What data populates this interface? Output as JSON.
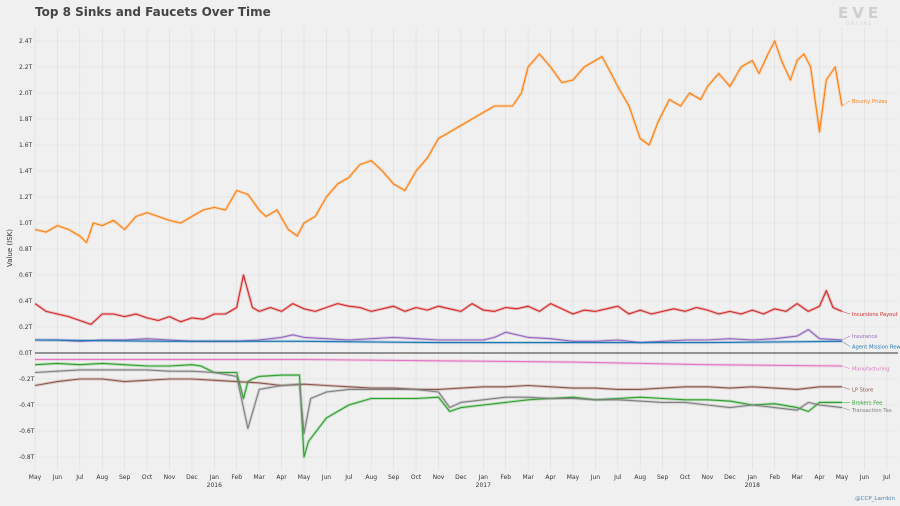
{
  "chart_data": {
    "type": "line",
    "title": "Top 8 Sinks and Faucets Over Time",
    "ylabel": "Value (ISK)",
    "ylim": [
      -0.9,
      2.5
    ],
    "y_ticks": [
      {
        "v": 2.4,
        "label": "2.4T"
      },
      {
        "v": 2.2,
        "label": "2.2T"
      },
      {
        "v": 2.0,
        "label": "2.0T"
      },
      {
        "v": 1.8,
        "label": "1.8T"
      },
      {
        "v": 1.6,
        "label": "1.6T"
      },
      {
        "v": 1.4,
        "label": "1.4T"
      },
      {
        "v": 1.2,
        "label": "1.2T"
      },
      {
        "v": 1.0,
        "label": "1.0T"
      },
      {
        "v": 0.8,
        "label": "0.8T"
      },
      {
        "v": 0.6,
        "label": "0.6T"
      },
      {
        "v": 0.4,
        "label": "0.4T"
      },
      {
        "v": 0.2,
        "label": "0.2T"
      },
      {
        "v": 0.0,
        "label": "0.0T"
      },
      {
        "v": -0.2,
        "label": "-0.2T"
      },
      {
        "v": -0.4,
        "label": "-0.4T"
      },
      {
        "v": -0.6,
        "label": "-0.6T"
      },
      {
        "v": -0.8,
        "label": "-0.8T"
      }
    ],
    "x_unit": "months since May 2015",
    "xlim": [
      0,
      38.5
    ],
    "x_ticks": [
      {
        "m": 0,
        "label": "May"
      },
      {
        "m": 1,
        "label": "Jun"
      },
      {
        "m": 2,
        "label": "Jul"
      },
      {
        "m": 3,
        "label": "Aug"
      },
      {
        "m": 4,
        "label": "Sep"
      },
      {
        "m": 5,
        "label": "Oct"
      },
      {
        "m": 6,
        "label": "Nov"
      },
      {
        "m": 7,
        "label": "Dec"
      },
      {
        "m": 8,
        "label": "Jan",
        "year": "2016"
      },
      {
        "m": 9,
        "label": "Feb"
      },
      {
        "m": 10,
        "label": "Mar"
      },
      {
        "m": 11,
        "label": "Apr"
      },
      {
        "m": 12,
        "label": "May"
      },
      {
        "m": 13,
        "label": "Jun"
      },
      {
        "m": 14,
        "label": "Jul"
      },
      {
        "m": 15,
        "label": "Aug"
      },
      {
        "m": 16,
        "label": "Sep"
      },
      {
        "m": 17,
        "label": "Oct"
      },
      {
        "m": 18,
        "label": "Nov"
      },
      {
        "m": 19,
        "label": "Dec"
      },
      {
        "m": 20,
        "label": "Jan",
        "year": "2017"
      },
      {
        "m": 21,
        "label": "Feb"
      },
      {
        "m": 22,
        "label": "Mar"
      },
      {
        "m": 23,
        "label": "Apr"
      },
      {
        "m": 24,
        "label": "May"
      },
      {
        "m": 25,
        "label": "Jun"
      },
      {
        "m": 26,
        "label": "Jul"
      },
      {
        "m": 27,
        "label": "Aug"
      },
      {
        "m": 28,
        "label": "Sep"
      },
      {
        "m": 29,
        "label": "Oct"
      },
      {
        "m": 30,
        "label": "Nov"
      },
      {
        "m": 31,
        "label": "Dec"
      },
      {
        "m": 32,
        "label": "Jan",
        "year": "2018"
      },
      {
        "m": 33,
        "label": "Feb"
      },
      {
        "m": 34,
        "label": "Mar"
      },
      {
        "m": 35,
        "label": "Apr"
      },
      {
        "m": 36,
        "label": "May"
      },
      {
        "m": 37,
        "label": "Jun"
      },
      {
        "m": 38,
        "label": "Jul"
      }
    ],
    "grid": true,
    "series": [
      {
        "name": "Bounty Prizes",
        "color": "#ff7f0e",
        "label_y": 1.94,
        "x": [
          0,
          0.5,
          1,
          1.5,
          2,
          2.3,
          2.6,
          3,
          3.5,
          4,
          4.5,
          5,
          5.5,
          6,
          6.5,
          7,
          7.5,
          8,
          8.5,
          9,
          9.5,
          10,
          10.3,
          10.8,
          11.3,
          11.7,
          12,
          12.5,
          13,
          13.5,
          14,
          14.5,
          15,
          15.5,
          16,
          16.5,
          17,
          17.5,
          18,
          18.5,
          19,
          19.5,
          20,
          20.5,
          21,
          21.3,
          21.7,
          22,
          22.5,
          23,
          23.5,
          24,
          24.5,
          25,
          25.3,
          25.7,
          26,
          26.5,
          27,
          27.4,
          27.8,
          28.3,
          28.8,
          29.2,
          29.7,
          30,
          30.5,
          31,
          31.5,
          32,
          32.3,
          32.7,
          33,
          33.3,
          33.7,
          34,
          34.3,
          34.6,
          35,
          35.3,
          35.7,
          36
        ],
        "y": [
          0.95,
          0.93,
          0.98,
          0.95,
          0.9,
          0.85,
          1.0,
          0.98,
          1.02,
          0.95,
          1.05,
          1.08,
          1.05,
          1.02,
          1.0,
          1.05,
          1.1,
          1.12,
          1.1,
          1.25,
          1.22,
          1.1,
          1.05,
          1.1,
          0.95,
          0.9,
          1.0,
          1.05,
          1.2,
          1.3,
          1.35,
          1.45,
          1.48,
          1.4,
          1.3,
          1.25,
          1.4,
          1.5,
          1.65,
          1.7,
          1.75,
          1.8,
          1.85,
          1.9,
          1.9,
          1.9,
          2.0,
          2.2,
          2.3,
          2.2,
          2.08,
          2.1,
          2.2,
          2.25,
          2.28,
          2.15,
          2.05,
          1.9,
          1.65,
          1.6,
          1.78,
          1.95,
          1.9,
          2.0,
          1.95,
          2.05,
          2.15,
          2.05,
          2.2,
          2.25,
          2.15,
          2.3,
          2.4,
          2.25,
          2.1,
          2.25,
          2.3,
          2.2,
          1.7,
          2.1,
          2.2,
          1.9
        ]
      },
      {
        "name": "Incursions Payout",
        "color": "#d62728",
        "label_y": 0.3,
        "x": [
          0,
          0.5,
          1,
          1.5,
          2,
          2.5,
          3,
          3.5,
          4,
          4.5,
          5,
          5.5,
          6,
          6.5,
          7,
          7.5,
          8,
          8.5,
          9,
          9.3,
          9.7,
          10,
          10.5,
          11,
          11.5,
          12,
          12.5,
          13,
          13.5,
          14,
          14.5,
          15,
          15.5,
          16,
          16.5,
          17,
          17.5,
          18,
          18.5,
          19,
          19.5,
          20,
          20.5,
          21,
          21.5,
          22,
          22.5,
          23,
          23.5,
          24,
          24.5,
          25,
          25.5,
          26,
          26.5,
          27,
          27.5,
          28,
          28.5,
          29,
          29.5,
          30,
          30.5,
          31,
          31.5,
          32,
          32.5,
          33,
          33.5,
          34,
          34.5,
          35,
          35.3,
          35.6,
          36
        ],
        "y": [
          0.38,
          0.32,
          0.3,
          0.28,
          0.25,
          0.22,
          0.3,
          0.3,
          0.28,
          0.3,
          0.27,
          0.25,
          0.28,
          0.24,
          0.27,
          0.26,
          0.3,
          0.3,
          0.35,
          0.6,
          0.35,
          0.32,
          0.35,
          0.32,
          0.38,
          0.34,
          0.32,
          0.35,
          0.38,
          0.36,
          0.35,
          0.32,
          0.34,
          0.36,
          0.32,
          0.35,
          0.33,
          0.36,
          0.34,
          0.32,
          0.38,
          0.33,
          0.32,
          0.35,
          0.34,
          0.36,
          0.32,
          0.38,
          0.34,
          0.3,
          0.33,
          0.32,
          0.34,
          0.36,
          0.3,
          0.33,
          0.3,
          0.32,
          0.34,
          0.32,
          0.35,
          0.33,
          0.3,
          0.32,
          0.3,
          0.33,
          0.3,
          0.34,
          0.32,
          0.38,
          0.32,
          0.36,
          0.48,
          0.35,
          0.32
        ]
      },
      {
        "name": "Insurance",
        "color": "#9467bd",
        "label_y": 0.13,
        "x": [
          0,
          1,
          2,
          3,
          4,
          5,
          6,
          7,
          8,
          9,
          10,
          11,
          11.5,
          12,
          13,
          14,
          15,
          16,
          17,
          18,
          19,
          20,
          20.5,
          21,
          22,
          23,
          24,
          25,
          26,
          27,
          28,
          29,
          30,
          31,
          32,
          33,
          34,
          34.5,
          35,
          36
        ],
        "y": [
          0.1,
          0.1,
          0.09,
          0.1,
          0.1,
          0.11,
          0.1,
          0.09,
          0.09,
          0.09,
          0.1,
          0.12,
          0.14,
          0.12,
          0.11,
          0.1,
          0.11,
          0.12,
          0.11,
          0.1,
          0.1,
          0.1,
          0.12,
          0.16,
          0.12,
          0.11,
          0.09,
          0.09,
          0.1,
          0.08,
          0.09,
          0.1,
          0.1,
          0.11,
          0.1,
          0.11,
          0.13,
          0.18,
          0.11,
          0.1
        ]
      },
      {
        "name": "Agent Mission Rewards",
        "color": "#1f77b4",
        "label_y": 0.05,
        "x": [
          0,
          6,
          12,
          18,
          24,
          30,
          36
        ],
        "y": [
          0.1,
          0.09,
          0.09,
          0.08,
          0.08,
          0.08,
          0.09
        ]
      },
      {
        "name": "Manufacturing",
        "color": "#e377c2",
        "label_y": -0.12,
        "x": [
          0,
          6,
          12,
          18,
          24,
          30,
          36
        ],
        "y": [
          -0.05,
          -0.05,
          -0.05,
          -0.06,
          -0.07,
          -0.09,
          -0.1
        ]
      },
      {
        "name": "LP Store",
        "color": "#8c564b",
        "label_y": -0.28,
        "x": [
          0,
          1,
          2,
          3,
          4,
          5,
          6,
          7,
          8,
          9,
          10,
          11,
          12,
          13,
          14,
          15,
          16,
          17,
          18,
          19,
          20,
          21,
          22,
          23,
          24,
          25,
          26,
          27,
          28,
          29,
          30,
          31,
          32,
          33,
          34,
          35,
          36
        ],
        "y": [
          -0.25,
          -0.22,
          -0.2,
          -0.2,
          -0.22,
          -0.21,
          -0.2,
          -0.2,
          -0.21,
          -0.22,
          -0.23,
          -0.25,
          -0.24,
          -0.25,
          -0.26,
          -0.27,
          -0.27,
          -0.28,
          -0.28,
          -0.27,
          -0.26,
          -0.26,
          -0.25,
          -0.26,
          -0.27,
          -0.27,
          -0.28,
          -0.28,
          -0.27,
          -0.26,
          -0.26,
          -0.27,
          -0.26,
          -0.27,
          -0.28,
          -0.26,
          -0.26
        ]
      },
      {
        "name": "Brokers Fee",
        "color": "#2ca02c",
        "label_y": -0.38,
        "x": [
          0,
          1,
          2,
          3,
          4,
          5,
          6,
          7,
          7.4,
          8,
          9,
          9.3,
          9.5,
          9.7,
          10,
          11,
          11.8,
          12,
          12.2,
          13,
          14,
          15,
          16,
          17,
          18,
          18.5,
          19,
          20,
          21,
          22,
          23,
          24,
          25,
          26,
          27,
          28,
          29,
          30,
          31,
          32,
          33,
          34,
          34.5,
          35,
          36
        ],
        "y": [
          -0.09,
          -0.08,
          -0.09,
          -0.08,
          -0.09,
          -0.1,
          -0.1,
          -0.09,
          -0.1,
          -0.15,
          -0.15,
          -0.35,
          -0.22,
          -0.2,
          -0.18,
          -0.17,
          -0.17,
          -0.8,
          -0.68,
          -0.5,
          -0.4,
          -0.35,
          -0.35,
          -0.35,
          -0.34,
          -0.45,
          -0.42,
          -0.4,
          -0.38,
          -0.36,
          -0.35,
          -0.34,
          -0.36,
          -0.35,
          -0.34,
          -0.35,
          -0.36,
          -0.36,
          -0.37,
          -0.4,
          -0.39,
          -0.42,
          -0.45,
          -0.38,
          -0.38
        ]
      },
      {
        "name": "Transaction Tax",
        "color": "#7f7f7f",
        "label_y": -0.44,
        "x": [
          0,
          1,
          2,
          3,
          4,
          5,
          6,
          7,
          8,
          9,
          9.5,
          10,
          11,
          11.8,
          12,
          12.3,
          13,
          14,
          15,
          16,
          17,
          18,
          18.5,
          19,
          20,
          21,
          22,
          23,
          24,
          25,
          26,
          27,
          28,
          29,
          30,
          31,
          32,
          33,
          34,
          34.5,
          35,
          36
        ],
        "y": [
          -0.15,
          -0.14,
          -0.13,
          -0.13,
          -0.13,
          -0.13,
          -0.14,
          -0.14,
          -0.15,
          -0.18,
          -0.58,
          -0.28,
          -0.25,
          -0.24,
          -0.62,
          -0.35,
          -0.3,
          -0.28,
          -0.28,
          -0.28,
          -0.28,
          -0.3,
          -0.42,
          -0.38,
          -0.36,
          -0.34,
          -0.34,
          -0.35,
          -0.35,
          -0.36,
          -0.36,
          -0.37,
          -0.38,
          -0.38,
          -0.4,
          -0.42,
          -0.4,
          -0.42,
          -0.44,
          -0.38,
          -0.4,
          -0.42
        ]
      }
    ]
  },
  "logo": {
    "text": "EVE",
    "subtext": "ONLINE"
  },
  "credit": "@CCP_Larrikin"
}
